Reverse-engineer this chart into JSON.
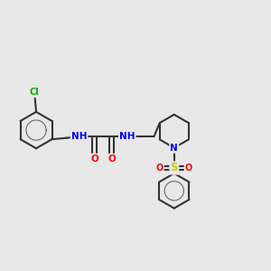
{
  "background_color": "#e8e8e8",
  "bond_color": "#333333",
  "bond_width": 1.5,
  "aromatic_bond_color": "#333333",
  "atom_colors": {
    "Cl": "#00aa00",
    "N": "#0000ff",
    "O": "#ff0000",
    "S": "#cccc00",
    "C": "#333333",
    "H": "#555555"
  },
  "title": "",
  "figsize": [
    3.0,
    3.0
  ],
  "dpi": 100
}
